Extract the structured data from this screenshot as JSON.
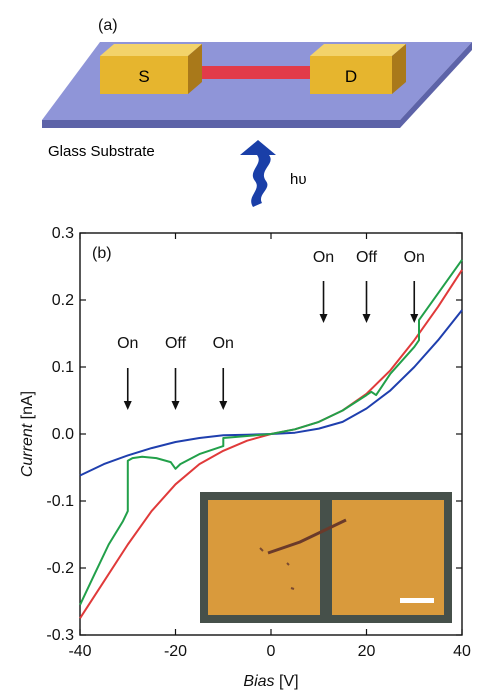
{
  "schematic": {
    "panel_label": "(a)",
    "source_label": "S",
    "drain_label": "D",
    "substrate_label": "Glass Substrate",
    "light_label": "hυ",
    "colors": {
      "substrate_top": "#8f95d8",
      "substrate_side": "#5d63a8",
      "electrode_face": "#e6b52e",
      "electrode_top": "#f3d36a",
      "electrode_side": "#a9791a",
      "wire": "#e23b4a",
      "arrow": "#1a3fa8"
    }
  },
  "chart_data": {
    "type": "line",
    "panel_label": "(b)",
    "title": "",
    "xlabel": "Bias",
    "xlabel_unit": "[V]",
    "ylabel": "Current",
    "ylabel_unit": "[nA]",
    "xlim": [
      -40,
      40
    ],
    "ylim": [
      -0.3,
      0.3
    ],
    "xticks": [
      -40,
      -20,
      0,
      20,
      40
    ],
    "yticks": [
      -0.3,
      -0.2,
      -0.1,
      0.0,
      0.1,
      0.2,
      0.3
    ],
    "ytick_labels": [
      "-0.3",
      "-0.2",
      "-0.1",
      "0.0",
      "0.1",
      "0.2",
      "0.3"
    ],
    "grid": false,
    "series": [
      {
        "color": "#1f3fae",
        "x": [
          -40,
          -35,
          -30,
          -25,
          -20,
          -15,
          -10,
          -5,
          0,
          5,
          10,
          15,
          20,
          25,
          30,
          35,
          40
        ],
        "y": [
          -0.062,
          -0.045,
          -0.032,
          -0.021,
          -0.012,
          -0.006,
          -0.002,
          -0.001,
          0.0,
          0.002,
          0.008,
          0.018,
          0.038,
          0.065,
          0.1,
          0.14,
          0.185
        ]
      },
      {
        "color": "#e03a3a",
        "x": [
          -40,
          -35,
          -30,
          -25,
          -20,
          -15,
          -10,
          -5,
          0,
          5,
          10,
          15,
          20,
          25,
          30,
          35,
          40
        ],
        "y": [
          -0.275,
          -0.22,
          -0.165,
          -0.115,
          -0.075,
          -0.045,
          -0.025,
          -0.01,
          0.0,
          0.007,
          0.018,
          0.035,
          0.06,
          0.095,
          0.14,
          0.19,
          0.245
        ]
      },
      {
        "color": "#22a04a",
        "x": [
          -40,
          -37,
          -34,
          -31,
          -30,
          -30,
          -29,
          -27,
          -24,
          -21,
          -20,
          -19,
          -15,
          -10,
          -10,
          -5,
          0,
          5,
          10,
          15,
          20,
          21,
          22,
          25,
          30,
          31,
          31,
          35,
          40
        ],
        "y": [
          -0.255,
          -0.21,
          -0.165,
          -0.13,
          -0.115,
          -0.04,
          -0.036,
          -0.034,
          -0.036,
          -0.042,
          -0.052,
          -0.045,
          -0.03,
          -0.018,
          -0.006,
          -0.003,
          0.0,
          0.007,
          0.018,
          0.035,
          0.058,
          0.063,
          0.058,
          0.09,
          0.13,
          0.14,
          0.17,
          0.21,
          0.26
        ]
      }
    ],
    "annotations_left": [
      {
        "text": "On",
        "x": -30
      },
      {
        "text": "Off",
        "x": -20
      },
      {
        "text": "On",
        "x": -10
      }
    ],
    "annotations_right": [
      {
        "text": "On",
        "x": 11
      },
      {
        "text": "Off",
        "x": 20
      },
      {
        "text": "On",
        "x": 30
      }
    ]
  }
}
